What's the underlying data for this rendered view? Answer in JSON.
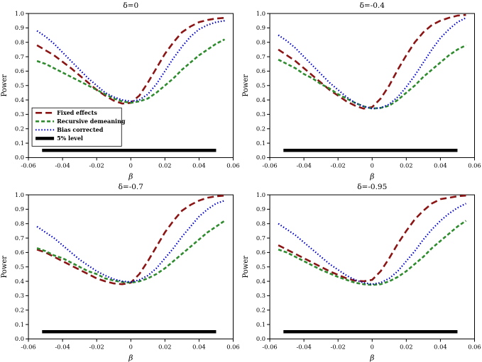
{
  "figure": {
    "background": "#ffffff",
    "layout": "2x2-grid"
  },
  "legend": {
    "position": "lower-left-of-first-panel",
    "items": [
      {
        "label": "Fixed effects",
        "color": "#8b1515",
        "dash": "9,5",
        "width": 2.6
      },
      {
        "label": "Recursive demeaning",
        "color": "#2e8b2e",
        "dash": "5,3",
        "width": 2.6
      },
      {
        "label": "Bias corrected",
        "color": "#0000cd",
        "dash": "1.5,2.6",
        "width": 2.2
      },
      {
        "label": "5% level",
        "color": "#000000",
        "dash": "",
        "width": 4.5
      }
    ]
  },
  "chart_data": [
    {
      "type": "line",
      "title": "δ=0",
      "xlabel": "β",
      "ylabel": "Power",
      "xlim": [
        -0.06,
        0.06
      ],
      "ylim": [
        0,
        1
      ],
      "xticks": [
        -0.06,
        -0.04,
        -0.02,
        0,
        0.02,
        0.04,
        0.06
      ],
      "xtick_labels": [
        "-0.06",
        "-0.04",
        "-0.02",
        "0",
        "0.02",
        "0.04",
        "0.06"
      ],
      "yticks": [
        0,
        0.1,
        0.2,
        0.3,
        0.4,
        0.5,
        0.6,
        0.7,
        0.8,
        0.9,
        1
      ],
      "ytick_labels": [
        "0.0",
        "0.1",
        "0.2",
        "0.3",
        "0.4",
        "0.5",
        "0.6",
        "0.7",
        "0.8",
        "0.9",
        "1.0"
      ],
      "grid": false,
      "show_legend": true,
      "x": [
        -0.055,
        -0.05,
        -0.045,
        -0.04,
        -0.035,
        -0.03,
        -0.025,
        -0.02,
        -0.015,
        -0.01,
        -0.005,
        0,
        0.005,
        0.01,
        0.015,
        0.02,
        0.025,
        0.03,
        0.035,
        0.04,
        0.045,
        0.05,
        0.055
      ],
      "series": [
        {
          "name": "Fixed effects",
          "values": [
            0.78,
            0.745,
            0.71,
            0.665,
            0.62,
            0.57,
            0.52,
            0.47,
            0.43,
            0.395,
            0.375,
            0.38,
            0.43,
            0.52,
            0.62,
            0.72,
            0.8,
            0.87,
            0.91,
            0.94,
            0.955,
            0.965,
            0.97
          ]
        },
        {
          "name": "Recursive demeaning",
          "values": [
            0.67,
            0.65,
            0.62,
            0.59,
            0.56,
            0.53,
            0.5,
            0.47,
            0.44,
            0.41,
            0.39,
            0.38,
            0.39,
            0.41,
            0.45,
            0.5,
            0.55,
            0.61,
            0.66,
            0.71,
            0.75,
            0.79,
            0.82
          ]
        },
        {
          "name": "Bias corrected",
          "values": [
            0.88,
            0.84,
            0.79,
            0.73,
            0.67,
            0.61,
            0.55,
            0.5,
            0.45,
            0.42,
            0.4,
            0.39,
            0.4,
            0.44,
            0.51,
            0.6,
            0.69,
            0.77,
            0.84,
            0.89,
            0.92,
            0.94,
            0.95
          ]
        },
        {
          "name": "5% level",
          "x": [
            -0.052,
            0.05
          ],
          "values": [
            0.05,
            0.05
          ]
        }
      ]
    },
    {
      "type": "line",
      "title": "δ=-0.4",
      "xlabel": "β",
      "ylabel": "Power",
      "xlim": [
        -0.06,
        0.06
      ],
      "ylim": [
        0,
        1
      ],
      "xticks": [
        -0.06,
        -0.04,
        -0.02,
        0,
        0.02,
        0.04,
        0.06
      ],
      "xtick_labels": [
        "-0.06",
        "-0.04",
        "-0.02",
        "0",
        "0.02",
        "0.04",
        "0.06"
      ],
      "yticks": [
        0,
        0.1,
        0.2,
        0.3,
        0.4,
        0.5,
        0.6,
        0.7,
        0.8,
        0.9,
        1
      ],
      "ytick_labels": [
        "0.0",
        "0.1",
        "0.2",
        "0.3",
        "0.4",
        "0.5",
        "0.6",
        "0.7",
        "0.8",
        "0.9",
        "1.0"
      ],
      "grid": false,
      "show_legend": false,
      "x": [
        -0.055,
        -0.05,
        -0.045,
        -0.04,
        -0.035,
        -0.03,
        -0.025,
        -0.02,
        -0.015,
        -0.01,
        -0.005,
        0,
        0.005,
        0.01,
        0.015,
        0.02,
        0.025,
        0.03,
        0.035,
        0.04,
        0.045,
        0.05,
        0.055
      ],
      "series": [
        {
          "name": "Fixed effects",
          "values": [
            0.75,
            0.71,
            0.67,
            0.62,
            0.57,
            0.52,
            0.47,
            0.43,
            0.39,
            0.36,
            0.34,
            0.35,
            0.41,
            0.5,
            0.61,
            0.71,
            0.8,
            0.87,
            0.92,
            0.95,
            0.97,
            0.985,
            0.99
          ]
        },
        {
          "name": "Recursive demeaning",
          "values": [
            0.68,
            0.65,
            0.62,
            0.58,
            0.55,
            0.51,
            0.48,
            0.44,
            0.41,
            0.38,
            0.355,
            0.34,
            0.345,
            0.36,
            0.4,
            0.45,
            0.5,
            0.56,
            0.61,
            0.66,
            0.71,
            0.75,
            0.78
          ]
        },
        {
          "name": "Bias corrected",
          "values": [
            0.85,
            0.81,
            0.76,
            0.7,
            0.64,
            0.58,
            0.52,
            0.47,
            0.42,
            0.38,
            0.355,
            0.34,
            0.345,
            0.37,
            0.42,
            0.49,
            0.57,
            0.66,
            0.75,
            0.83,
            0.89,
            0.94,
            0.97
          ]
        },
        {
          "name": "5% level",
          "x": [
            -0.052,
            0.05
          ],
          "values": [
            0.05,
            0.05
          ]
        }
      ]
    },
    {
      "type": "line",
      "title": "δ=-0.7",
      "xlabel": "β",
      "ylabel": "Power",
      "xlim": [
        -0.06,
        0.06
      ],
      "ylim": [
        0,
        1
      ],
      "xticks": [
        -0.06,
        -0.04,
        -0.02,
        0,
        0.02,
        0.04,
        0.06
      ],
      "xtick_labels": [
        "-0.06",
        "-0.04",
        "-0.02",
        "0",
        "0.02",
        "0.04",
        "0.06"
      ],
      "yticks": [
        0,
        0.1,
        0.2,
        0.3,
        0.4,
        0.5,
        0.6,
        0.7,
        0.8,
        0.9,
        1
      ],
      "ytick_labels": [
        "0.0",
        "0.1",
        "0.2",
        "0.3",
        "0.4",
        "0.5",
        "0.6",
        "0.7",
        "0.8",
        "0.9",
        "1.0"
      ],
      "grid": false,
      "show_legend": false,
      "x": [
        -0.055,
        -0.05,
        -0.045,
        -0.04,
        -0.035,
        -0.03,
        -0.025,
        -0.02,
        -0.015,
        -0.01,
        -0.005,
        0,
        0.005,
        0.01,
        0.015,
        0.02,
        0.025,
        0.03,
        0.035,
        0.04,
        0.045,
        0.05,
        0.055
      ],
      "series": [
        {
          "name": "Fixed effects",
          "values": [
            0.62,
            0.6,
            0.57,
            0.54,
            0.51,
            0.48,
            0.45,
            0.42,
            0.4,
            0.385,
            0.38,
            0.39,
            0.45,
            0.54,
            0.64,
            0.74,
            0.82,
            0.89,
            0.93,
            0.96,
            0.98,
            0.99,
            0.995
          ]
        },
        {
          "name": "Recursive demeaning",
          "values": [
            0.63,
            0.61,
            0.58,
            0.56,
            0.53,
            0.5,
            0.47,
            0.45,
            0.42,
            0.405,
            0.395,
            0.39,
            0.4,
            0.42,
            0.45,
            0.49,
            0.54,
            0.59,
            0.64,
            0.69,
            0.74,
            0.78,
            0.82
          ]
        },
        {
          "name": "Bias corrected",
          "values": [
            0.78,
            0.74,
            0.7,
            0.65,
            0.6,
            0.55,
            0.51,
            0.47,
            0.44,
            0.415,
            0.4,
            0.395,
            0.41,
            0.44,
            0.49,
            0.56,
            0.63,
            0.71,
            0.78,
            0.85,
            0.9,
            0.94,
            0.96
          ]
        },
        {
          "name": "5% level",
          "x": [
            -0.052,
            0.05
          ],
          "values": [
            0.05,
            0.05
          ]
        }
      ]
    },
    {
      "type": "line",
      "title": "δ=-0.95",
      "xlabel": "β",
      "ylabel": "Power",
      "xlim": [
        -0.06,
        0.06
      ],
      "ylim": [
        0,
        1
      ],
      "xticks": [
        -0.06,
        -0.04,
        -0.02,
        0,
        0.02,
        0.04,
        0.06
      ],
      "xtick_labels": [
        "-0.06",
        "-0.04",
        "-0.02",
        "0",
        "0.02",
        "0.04",
        "0.06"
      ],
      "yticks": [
        0,
        0.1,
        0.2,
        0.3,
        0.4,
        0.5,
        0.6,
        0.7,
        0.8,
        0.9,
        1
      ],
      "ytick_labels": [
        "0.0",
        "0.1",
        "0.2",
        "0.3",
        "0.4",
        "0.5",
        "0.6",
        "0.7",
        "0.8",
        "0.9",
        "1.0"
      ],
      "grid": false,
      "show_legend": false,
      "x": [
        -0.055,
        -0.05,
        -0.045,
        -0.04,
        -0.035,
        -0.03,
        -0.025,
        -0.02,
        -0.015,
        -0.01,
        -0.005,
        0,
        0.005,
        0.01,
        0.015,
        0.02,
        0.025,
        0.03,
        0.035,
        0.04,
        0.045,
        0.05,
        0.055
      ],
      "series": [
        {
          "name": "Fixed effects",
          "values": [
            0.65,
            0.62,
            0.59,
            0.56,
            0.53,
            0.5,
            0.47,
            0.445,
            0.42,
            0.405,
            0.4,
            0.41,
            0.47,
            0.56,
            0.66,
            0.75,
            0.83,
            0.89,
            0.94,
            0.97,
            0.98,
            0.99,
            0.995
          ]
        },
        {
          "name": "Recursive demeaning",
          "values": [
            0.62,
            0.6,
            0.57,
            0.54,
            0.51,
            0.48,
            0.455,
            0.43,
            0.41,
            0.39,
            0.38,
            0.375,
            0.38,
            0.4,
            0.43,
            0.47,
            0.52,
            0.57,
            0.63,
            0.68,
            0.73,
            0.78,
            0.82
          ]
        },
        {
          "name": "Bias corrected",
          "values": [
            0.8,
            0.76,
            0.72,
            0.67,
            0.62,
            0.57,
            0.52,
            0.48,
            0.44,
            0.41,
            0.39,
            0.38,
            0.39,
            0.42,
            0.47,
            0.54,
            0.61,
            0.69,
            0.76,
            0.82,
            0.87,
            0.91,
            0.94
          ]
        },
        {
          "name": "5% level",
          "x": [
            -0.052,
            0.05
          ],
          "values": [
            0.05,
            0.05
          ]
        }
      ]
    }
  ]
}
